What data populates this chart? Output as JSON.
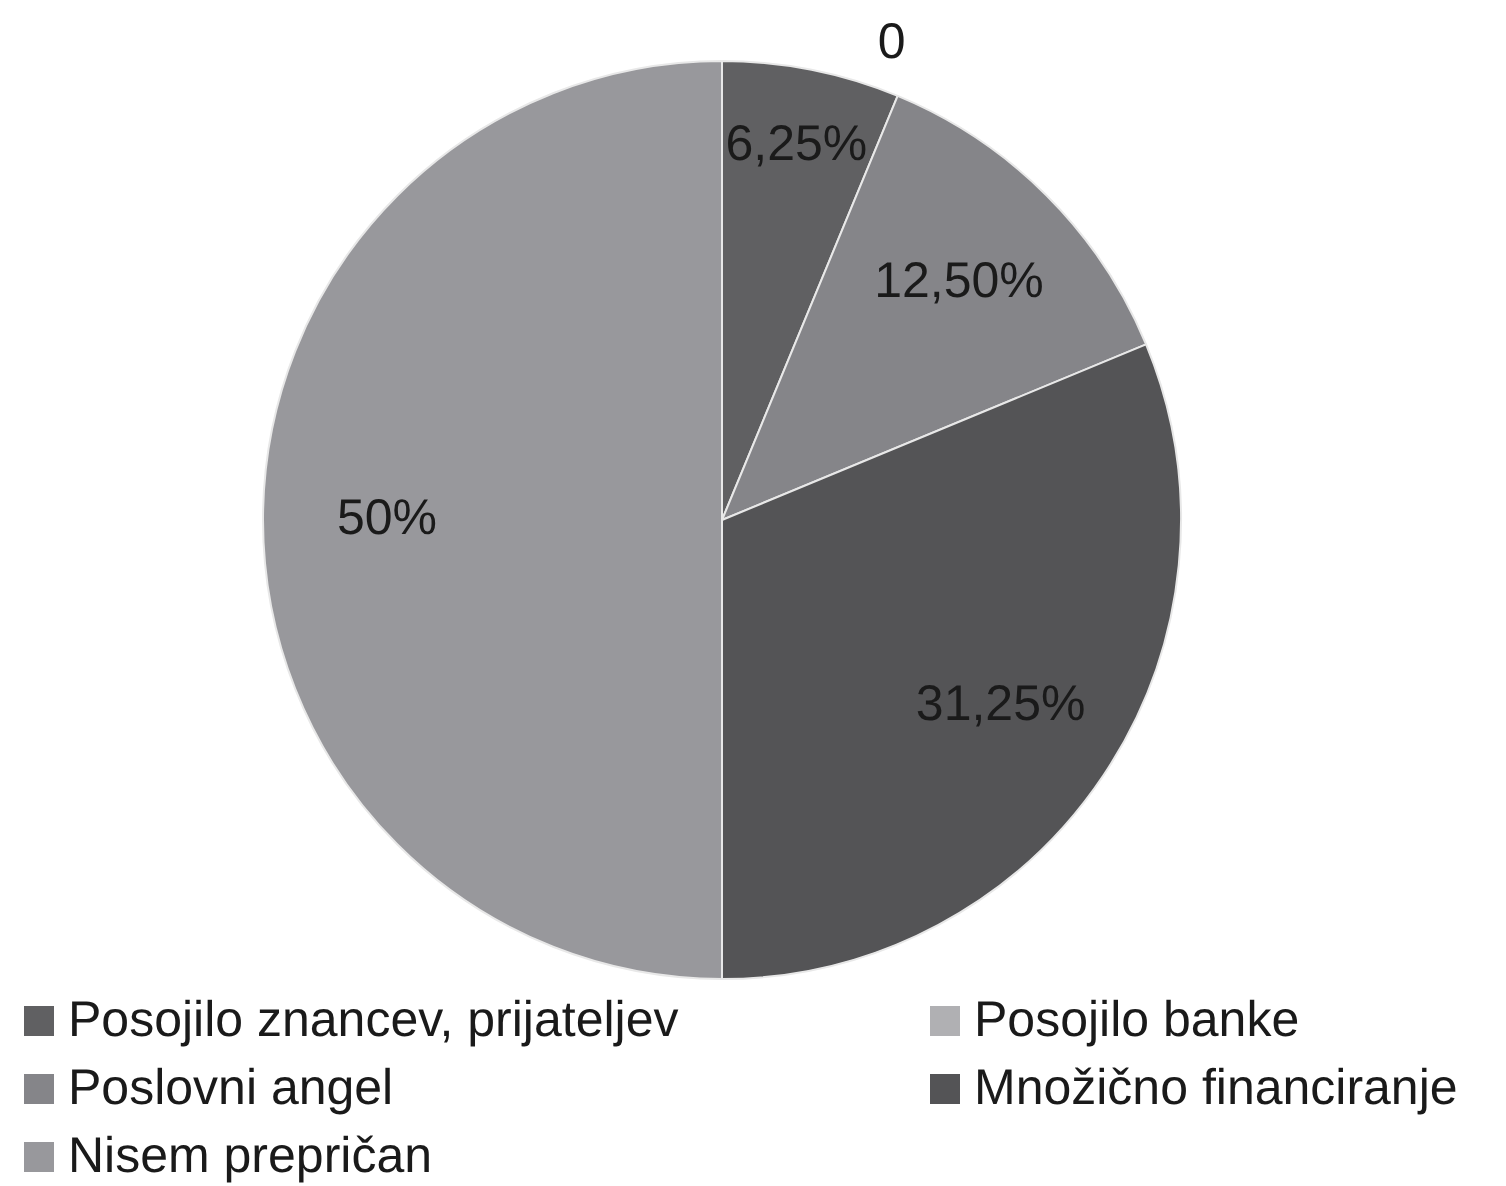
{
  "chart_data": {
    "type": "pie",
    "categories": [
      "Posojilo znancev, prijateljev",
      "Posojilo banke",
      "Poslovni angel",
      "Množično financiranje",
      "Nisem prepričan"
    ],
    "values": [
      6.25,
      0,
      12.5,
      31.25,
      50
    ],
    "colors": [
      "#606062",
      "#b0b0b3",
      "#858589",
      "#545456",
      "#98989c"
    ],
    "value_labels": [
      "6,25%",
      "0",
      "12,50%",
      "31,25%",
      "50%"
    ],
    "legend": "bottom"
  }
}
